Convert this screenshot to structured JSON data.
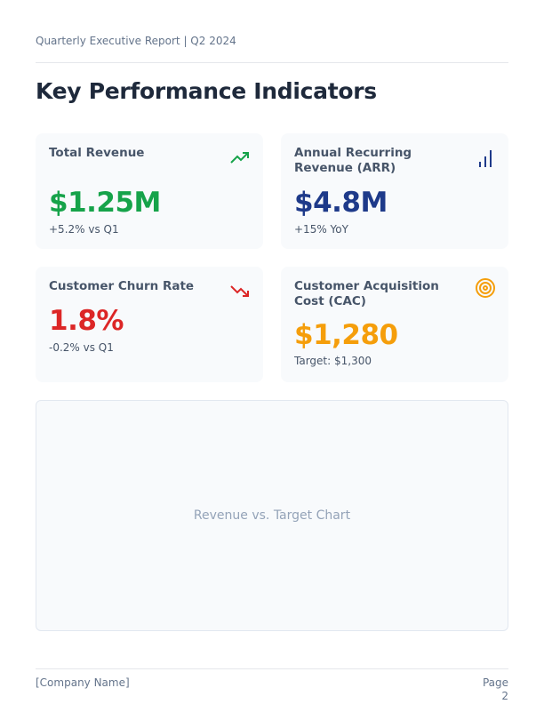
{
  "header": {
    "report_title": "Quarterly Executive Report | Q2 2024"
  },
  "page_title": "Key Performance Indicators",
  "kpis": [
    {
      "label": "Total Revenue",
      "value": "$1.25M",
      "sub": "+5.2% vs Q1",
      "icon": "trending-up-icon",
      "color": "#16a34a"
    },
    {
      "label": "Annual Recurring Revenue (ARR)",
      "value": "$4.8M",
      "sub": "+15% YoY",
      "icon": "bar-chart-icon",
      "color": "#1e3a8a"
    },
    {
      "label": "Customer Churn Rate",
      "value": "1.8%",
      "sub": "-0.2% vs Q1",
      "icon": "trending-down-icon",
      "color": "#dc2626"
    },
    {
      "label": "Customer Acquisition Cost (CAC)",
      "value": "$1,280",
      "sub": "Target: $1,300",
      "icon": "target-icon",
      "color": "#f59e0b"
    }
  ],
  "chart_placeholder": "Revenue vs. Target Chart",
  "footer": {
    "company": "[Company Name]",
    "page_label": "Page",
    "page_number": "2"
  }
}
